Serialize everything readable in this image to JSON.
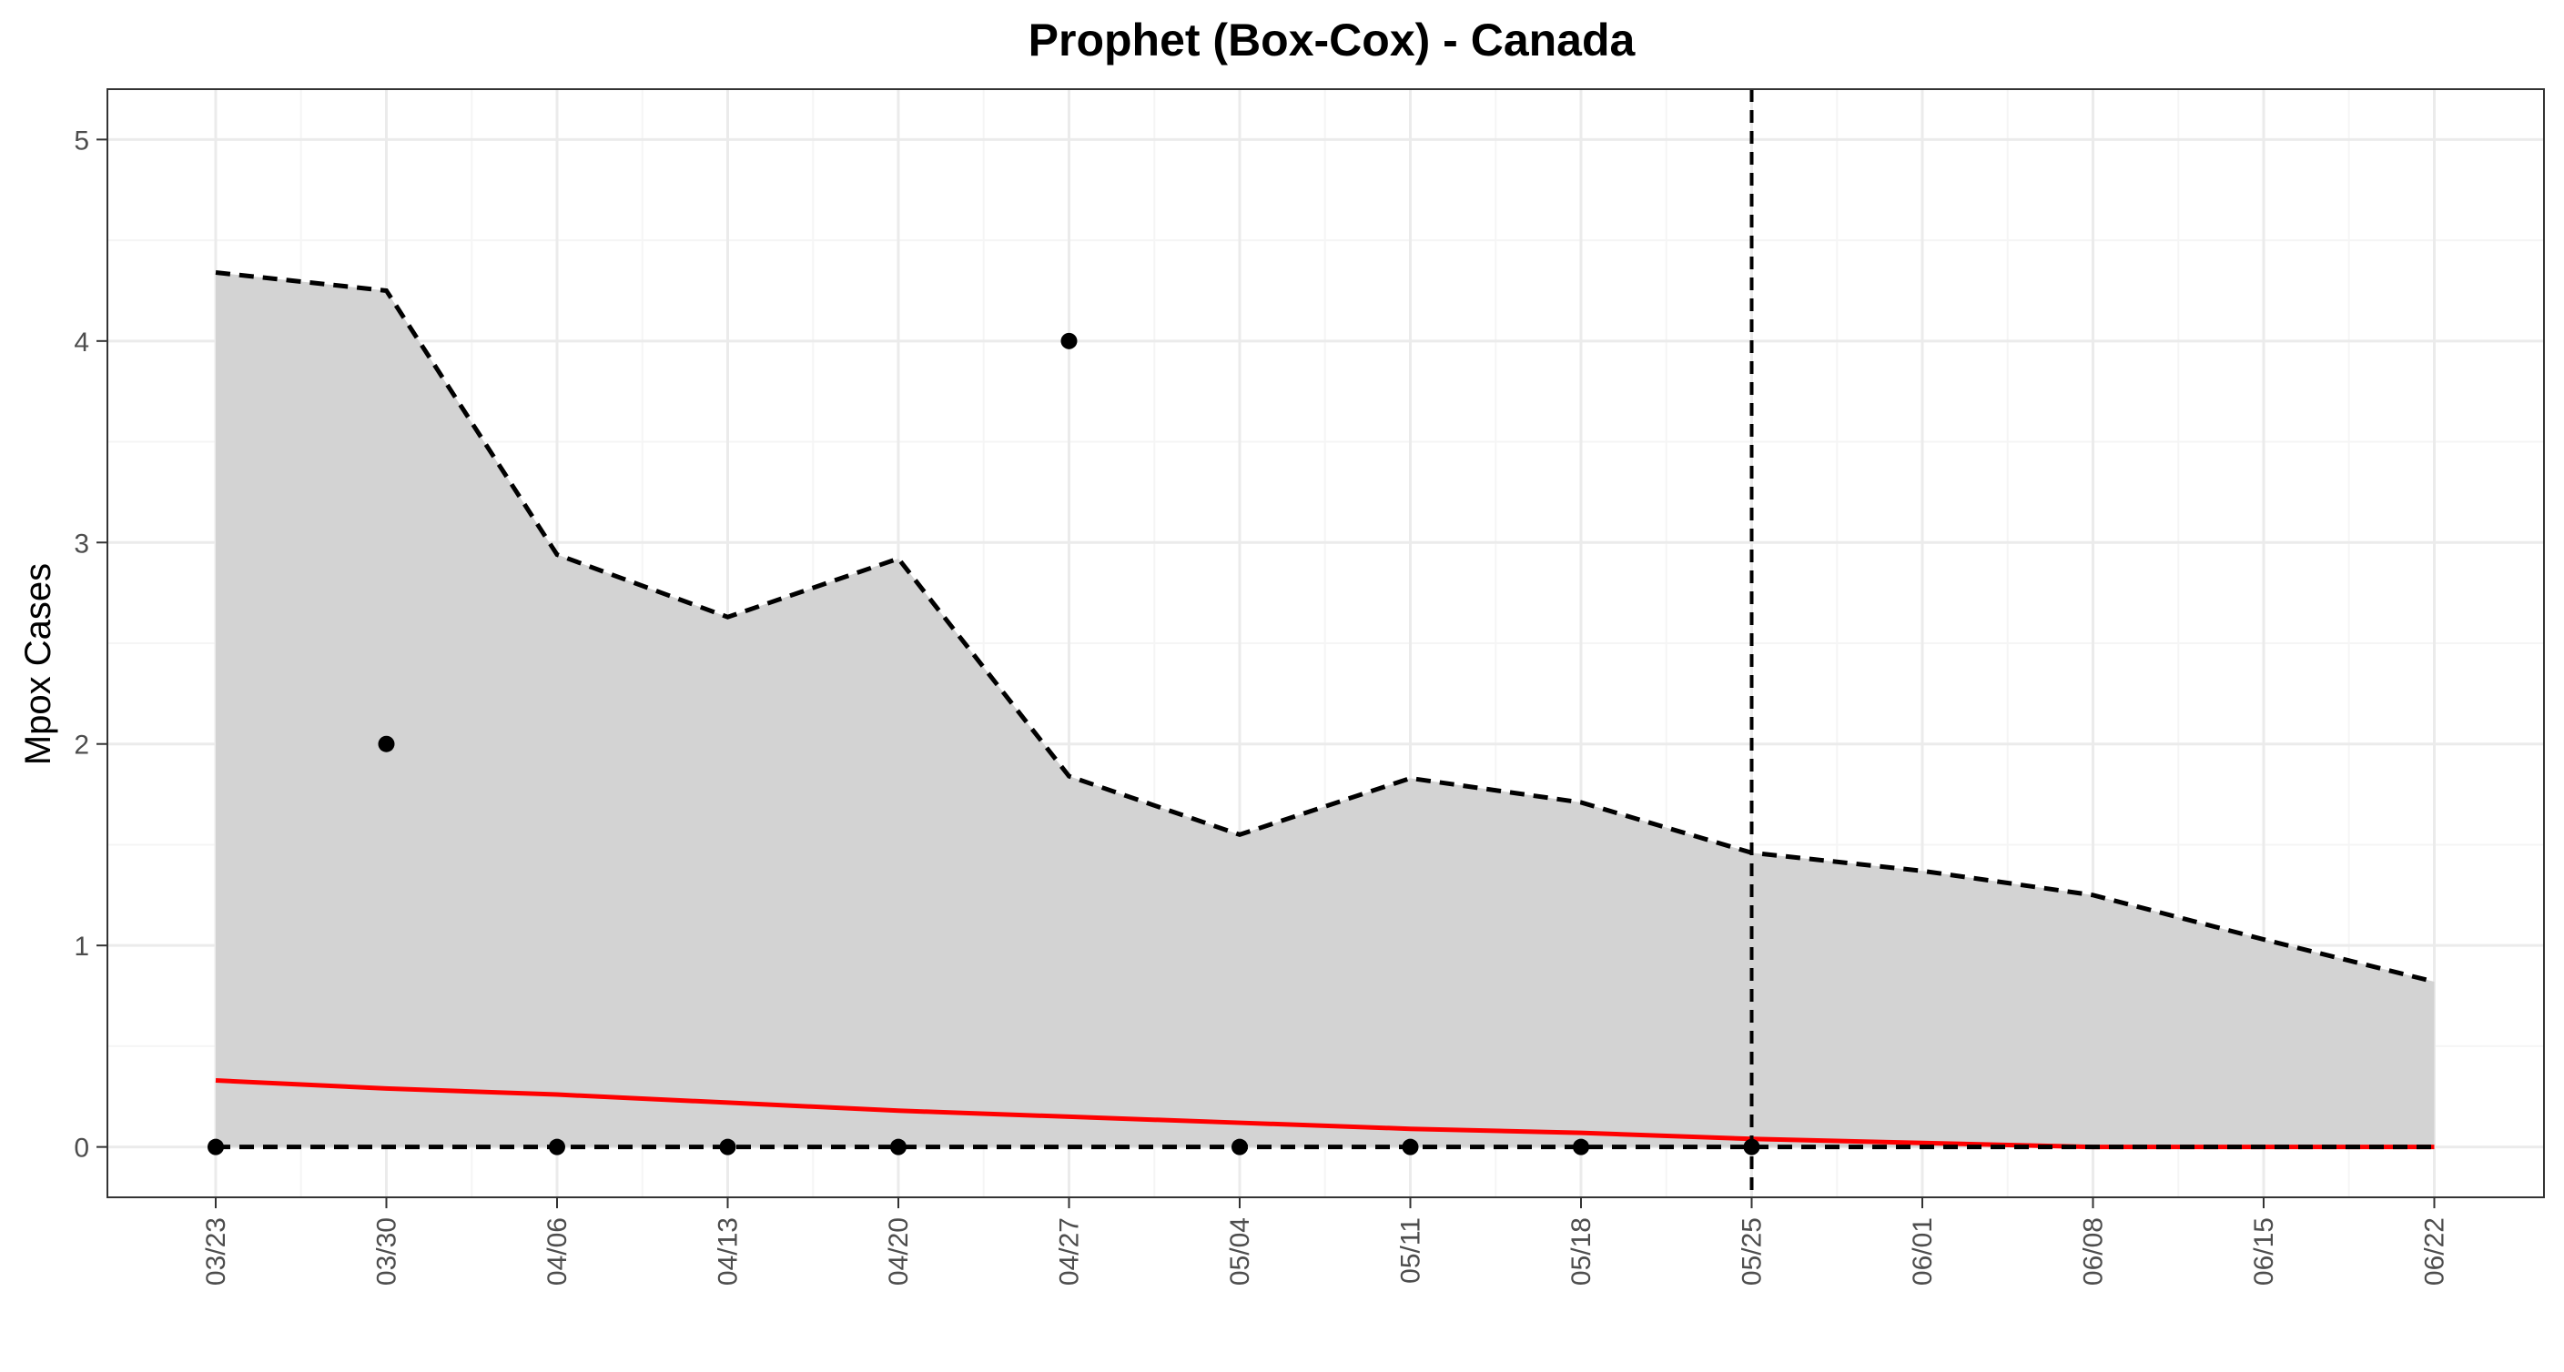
{
  "chart_data": {
    "type": "line",
    "title": "Prophet (Box-Cox) - Canada",
    "xlabel": "",
    "ylabel": "Mpox Cases",
    "x": [
      "03/23",
      "03/30",
      "04/06",
      "04/13",
      "04/20",
      "04/27",
      "05/04",
      "05/11",
      "05/18",
      "05/25",
      "06/01",
      "06/08",
      "06/15",
      "06/22"
    ],
    "yticks": [
      "0",
      "1",
      "2",
      "3",
      "4",
      "5"
    ],
    "ylim": [
      -0.25,
      5.25
    ],
    "grid": true,
    "legend": "none",
    "forecast_start": "05/25",
    "series": [
      {
        "kind": "interval-upper",
        "values": [
          4.34,
          4.25,
          2.94,
          2.63,
          2.92,
          1.84,
          1.55,
          1.83,
          1.71,
          1.46,
          1.37,
          1.25,
          1.03,
          0.82
        ]
      },
      {
        "kind": "interval-lower",
        "values": [
          0,
          0,
          0,
          0,
          0,
          0,
          0,
          0,
          0,
          0,
          0,
          0,
          0,
          0
        ]
      },
      {
        "kind": "forecast",
        "values": [
          0.33,
          0.29,
          0.26,
          0.22,
          0.18,
          0.15,
          0.12,
          0.09,
          0.07,
          0.04,
          0.02,
          0.0,
          0.0,
          0.0
        ]
      },
      {
        "kind": "observed",
        "x": [
          "03/23",
          "03/30",
          "04/06",
          "04/13",
          "04/20",
          "04/27",
          "05/04",
          "05/11",
          "05/18",
          "05/25"
        ],
        "values": [
          0,
          2,
          0,
          0,
          0,
          4,
          0,
          0,
          0,
          0
        ]
      }
    ],
    "colors": {
      "interval_fill": "#d3d3d3",
      "interval_line": "#000000",
      "forecast_line": "#ff0000",
      "points": "#000000",
      "grid_major": "#ebebeb",
      "grid_minor": "#f5f5f5",
      "panel_border": "#333333"
    }
  }
}
